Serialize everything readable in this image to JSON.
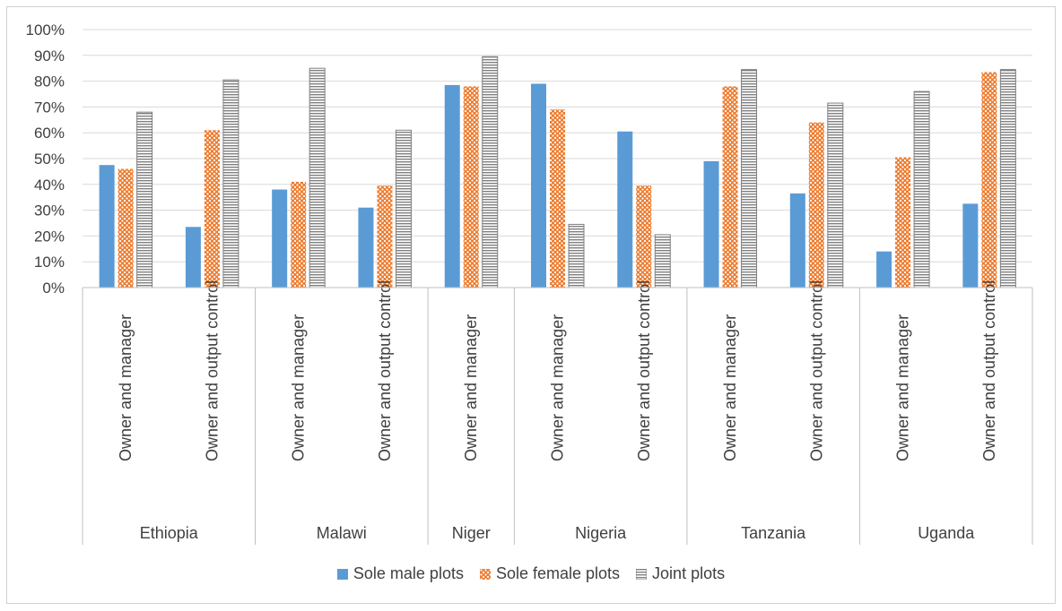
{
  "chart_data": {
    "type": "bar",
    "title": "",
    "xlabel": "",
    "ylabel": "",
    "ylim": [
      0,
      100
    ],
    "yticks": [
      "0%",
      "10%",
      "20%",
      "30%",
      "40%",
      "50%",
      "60%",
      "70%",
      "80%",
      "90%",
      "100%"
    ],
    "grid": true,
    "legend_position": "bottom",
    "groups": [
      {
        "label": "Ethiopia",
        "categories": [
          "Owner and manager",
          "Owner and output control"
        ]
      },
      {
        "label": "Malawi",
        "categories": [
          "Owner and manager",
          "Owner and output control"
        ]
      },
      {
        "label": "Niger",
        "categories": [
          "Owner and manager"
        ]
      },
      {
        "label": "Nigeria",
        "categories": [
          "Owner and manager",
          "Owner and output control"
        ]
      },
      {
        "label": "Tanzania",
        "categories": [
          "Owner and manager",
          "Owner and output control"
        ]
      },
      {
        "label": "Uganda",
        "categories": [
          "Owner and manager",
          "Owner and output control"
        ]
      }
    ],
    "series": [
      {
        "name": "Sole male plots",
        "color": "#5b9bd5",
        "pattern": "solid",
        "values": [
          47.5,
          23.5,
          38,
          31,
          78.5,
          79,
          60.5,
          49,
          36.5,
          14,
          32.5
        ]
      },
      {
        "name": "Sole female plots",
        "color": "#ed7d31",
        "pattern": "dots",
        "values": [
          46,
          61,
          41,
          39.5,
          78,
          69,
          39.5,
          78,
          64,
          50.5,
          83.5
        ]
      },
      {
        "name": "Joint plots",
        "color": "#7f7f7f",
        "pattern": "horizontal-stripes",
        "values": [
          68,
          80.5,
          85,
          61,
          89.5,
          24.5,
          20.5,
          84.5,
          71.5,
          76,
          84.5
        ]
      }
    ]
  }
}
